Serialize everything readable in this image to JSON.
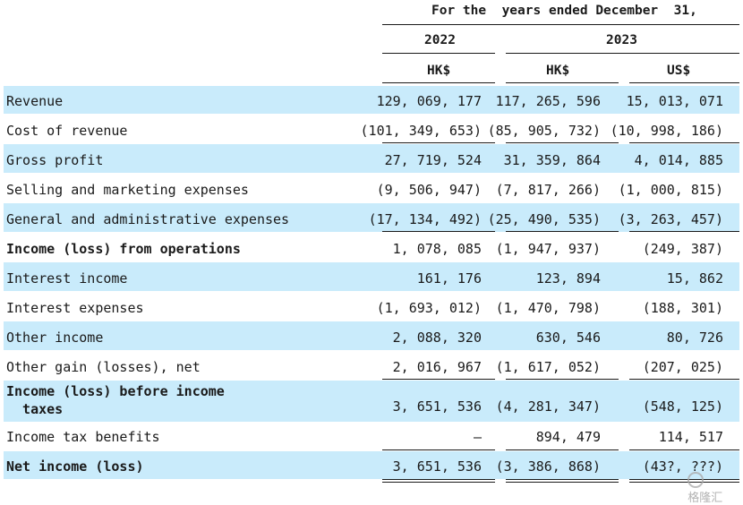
{
  "header": {
    "period": "For the  years ended December  31,",
    "year1": "2022",
    "year2": "2023",
    "cur1": "HK$",
    "cur2": "HK$",
    "cur3": "US$"
  },
  "rows": [
    {
      "label": "Revenue",
      "v1": "129, 069, 177",
      "v2": "117, 265, 596",
      "v3": "15, 013, 071"
    },
    {
      "label": "Cost of revenue",
      "v1": "(101, 349, 653)",
      "v2": "(85, 905, 732)",
      "v3": "(10, 998, 186)"
    },
    {
      "label": "Gross profit",
      "v1": "27, 719, 524",
      "v2": "31, 359, 864",
      "v3": "4, 014, 885"
    },
    {
      "label": "Selling and marketing expenses",
      "v1": "(9, 506, 947)",
      "v2": "(7, 817, 266)",
      "v3": "(1, 000, 815)"
    },
    {
      "label": "General and administrative expenses",
      "v1": "(17, 134, 492)",
      "v2": "(25, 490, 535)",
      "v3": "(3, 263, 457)"
    },
    {
      "label": "Income (loss) from operations",
      "v1": "1, 078, 085",
      "v2": "(1, 947, 937)",
      "v3": "(249, 387)"
    },
    {
      "label": "Interest income",
      "v1": "161, 176",
      "v2": "123, 894",
      "v3": "15, 862"
    },
    {
      "label": "Interest expenses",
      "v1": "(1, 693, 012)",
      "v2": "(1, 470, 798)",
      "v3": "(188, 301)"
    },
    {
      "label": "Other income",
      "v1": "2, 088, 320",
      "v2": "630, 546",
      "v3": "80, 726"
    },
    {
      "label": "Other gain (losses), net",
      "v1": "2, 016, 967",
      "v2": "(1, 617, 052)",
      "v3": "(207, 025)"
    },
    {
      "label": "Income (loss) before income\n  taxes",
      "v1": "3, 651, 536",
      "v2": "(4, 281, 347)",
      "v3": "(548, 125)"
    },
    {
      "label": "Income tax benefits",
      "v1": "—",
      "v2": "894, 479",
      "v3": "114, 517"
    },
    {
      "label": "Net income (loss)",
      "v1": "3, 651, 536",
      "v2": "(3, 386, 868)",
      "v3": "(43?, ???)"
    }
  ],
  "watermark": "格隆汇"
}
